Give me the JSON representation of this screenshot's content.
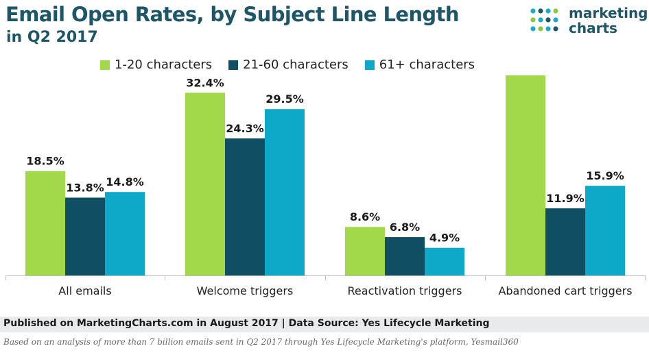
{
  "header": {
    "title": "Email Open Rates, by Subject Line Length",
    "subtitle": "in Q2 2017"
  },
  "logo": {
    "line1": "marketing",
    "line2": "charts",
    "dot_colors": [
      "#1fa9c5",
      "#8ec73f",
      "#1d5667"
    ]
  },
  "chart_data": {
    "type": "bar",
    "title": "Email Open Rates, by Subject Line Length",
    "subtitle": "in Q2 2017",
    "categories": [
      "All emails",
      "Welcome triggers",
      "Reactivation triggers",
      "Abandoned cart triggers"
    ],
    "series": [
      {
        "name": "1-20 characters",
        "color": "#a1d94a",
        "values": [
          18.5,
          32.4,
          8.6,
          36.8
        ]
      },
      {
        "name": "21-60 characters",
        "color": "#104f63",
        "values": [
          13.8,
          24.3,
          6.8,
          11.9
        ]
      },
      {
        "name": "61+ characters",
        "color": "#0ea9c9",
        "values": [
          14.8,
          29.5,
          4.9,
          15.9
        ]
      }
    ],
    "value_suffix": "%",
    "ylim": [
      0,
      40
    ],
    "grid": false,
    "legend_position": "top"
  },
  "footer": {
    "published": "Published on MarketingCharts.com in August 2017 | Data Source: Yes Lifecycle Marketing",
    "note": "Based on an analysis of more than 7 billion emails sent in Q2 2017 through Yes Lifecycle Marketing's platform, Yesmail360"
  }
}
